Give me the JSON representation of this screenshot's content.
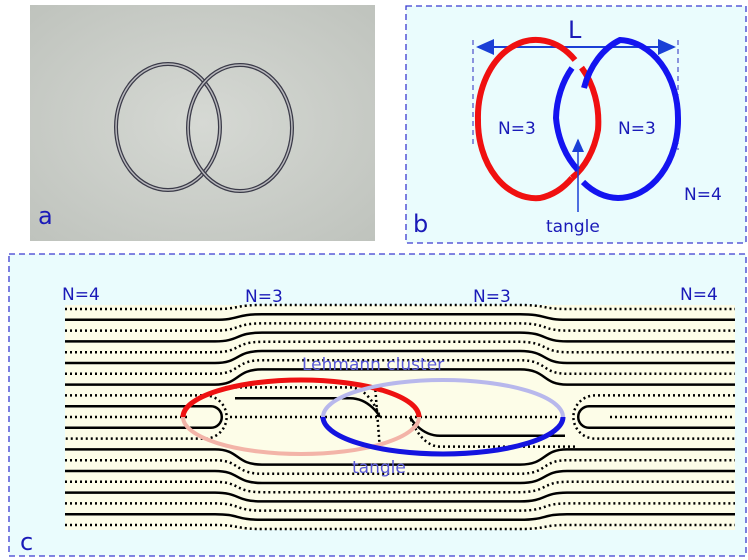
{
  "panel_a": {
    "label": "a"
  },
  "panel_b": {
    "label": "b",
    "length_label": "L",
    "left_loop": "N=3",
    "right_loop": "N=3",
    "outside": "N=4",
    "tangle": "tangle"
  },
  "panel_c": {
    "label": "c",
    "regions": [
      "N=4",
      "N=3",
      "N=3",
      "N=4"
    ],
    "cluster": "Lehmann cluster",
    "tangle": "tangle"
  }
}
